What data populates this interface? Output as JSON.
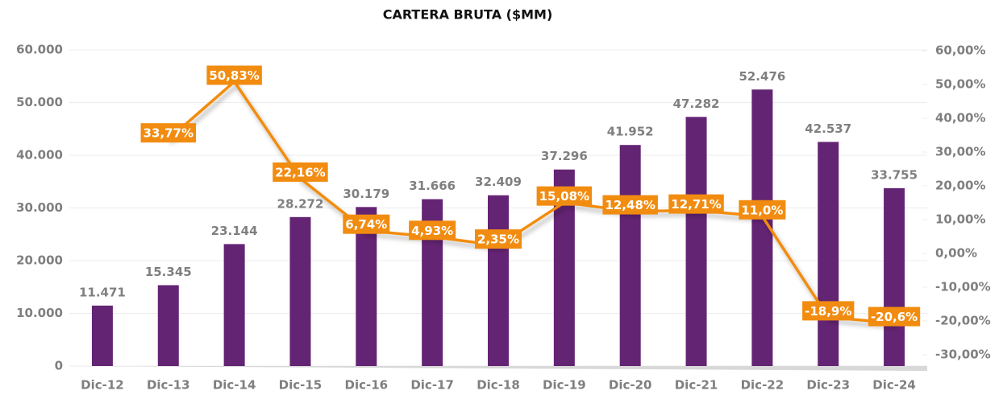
{
  "chart_data": {
    "type": "bar",
    "title": "CARTERA BRUTA ($MM)",
    "categories": [
      "Dic-12",
      "Dic-13",
      "Dic-14",
      "Dic-15",
      "Dic-16",
      "Dic-17",
      "Dic-18",
      "Dic-19",
      "Dic-20",
      "Dic-21",
      "Dic-22",
      "Dic-23",
      "Dic-24"
    ],
    "series": [
      {
        "type": "bar",
        "color": "#642474",
        "values": [
          11471,
          15345,
          23144,
          28272,
          30179,
          31666,
          32409,
          37296,
          41952,
          47282,
          52476,
          42537,
          33755
        ],
        "value_labels": [
          "11.471",
          "15.345",
          "23.144",
          "28.272",
          "30.179",
          "31.666",
          "32.409",
          "37.296",
          "41.952",
          "47.282",
          "52.476",
          "42.537",
          "33.755"
        ]
      },
      {
        "type": "line",
        "axis": "y2",
        "color": "#f28c10",
        "values": [
          null,
          33.77,
          50.83,
          22.16,
          6.74,
          4.93,
          2.35,
          15.08,
          12.48,
          12.71,
          11.0,
          -18.9,
          -20.6
        ],
        "value_labels": [
          null,
          "33,77%",
          "50,83%",
          "22,16%",
          "6,74%",
          "4,93%",
          "2,35%",
          "15,08%",
          "12,48%",
          "12,71%",
          "11,0%",
          "-18,9%",
          "-20,6%"
        ]
      }
    ],
    "ylim": [
      0,
      60000
    ],
    "yticks": [
      0,
      {
        "value": 10000,
        "label": "10.000"
      },
      {
        "value": 20000,
        "label": "20.000"
      },
      {
        "value": 30000,
        "label": "30.000"
      },
      {
        "value": 40000,
        "label": "40.000"
      },
      {
        "value": 50000,
        "label": "50.000"
      },
      {
        "value": 60000,
        "label": "60.000"
      }
    ],
    "y2lim": [
      -30,
      60
    ],
    "y2ticks": [
      {
        "value": -30,
        "label": "-30,00%"
      },
      {
        "value": -20,
        "label": "-20,00%"
      },
      {
        "value": -10,
        "label": "-10,00%"
      },
      {
        "value": 0,
        "label": "0,00%"
      },
      {
        "value": 10,
        "label": "10,00%"
      },
      {
        "value": 20,
        "label": "20,00%"
      },
      {
        "value": 30,
        "label": "30,00%"
      },
      {
        "value": 40,
        "label": "40,00%"
      },
      {
        "value": 50,
        "label": "50,00%"
      },
      {
        "value": 60,
        "label": "60,00%"
      }
    ],
    "grid": true
  }
}
